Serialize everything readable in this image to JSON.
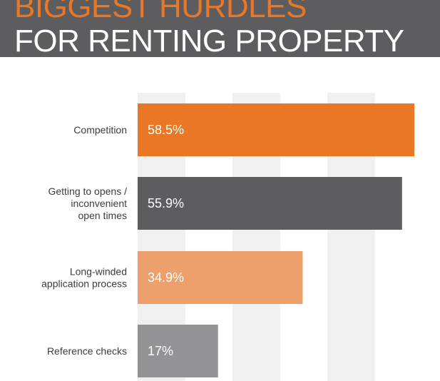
{
  "header": {
    "title_line1": "BIGGEST HURDLES",
    "title_line2": "FOR RENTING PROPERTY",
    "background": "#5d5d5f",
    "accent": "#e97726"
  },
  "chart_data": {
    "type": "bar",
    "orientation": "horizontal",
    "title": "BIGGEST HURDLES FOR RENTING PROPERTY",
    "categories": [
      [
        "Competition"
      ],
      [
        "Getting to opens /",
        "inconvenient",
        "open times"
      ],
      [
        "Long-winded",
        "application process"
      ],
      [
        "Reference checks"
      ]
    ],
    "values": [
      58.5,
      55.9,
      34.9,
      17
    ],
    "value_labels": [
      "58.5%",
      "55.9%",
      "34.9%",
      "17%"
    ],
    "colors": [
      "#e97726",
      "#5d5d5f",
      "#eda06b",
      "#939395"
    ],
    "xlim": [
      0,
      60
    ],
    "grid": true,
    "grid_band_color": "#f0f0f0",
    "xlabel": "",
    "ylabel": ""
  }
}
